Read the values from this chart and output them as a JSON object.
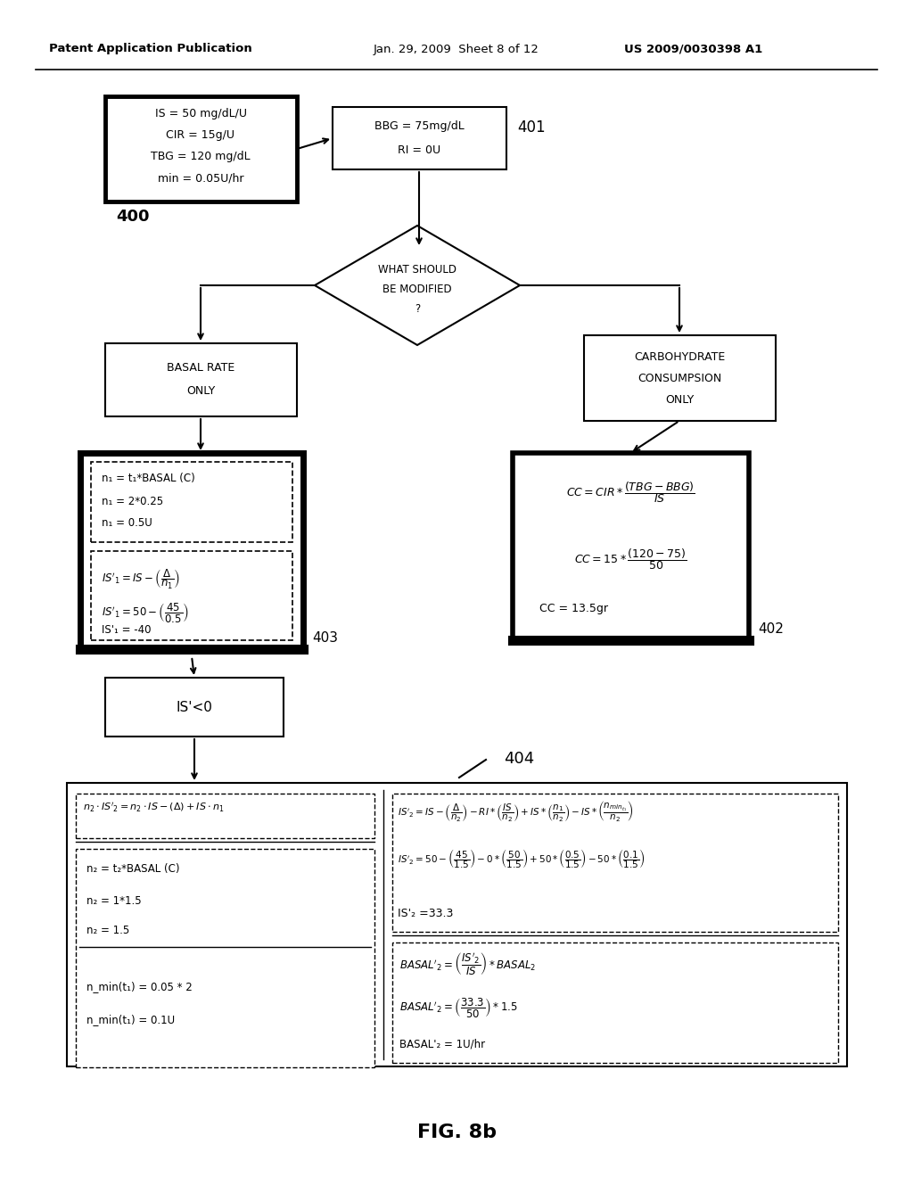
{
  "background_color": "#ffffff",
  "header_left": "Patent Application Publication",
  "header_mid": "Jan. 29, 2009  Sheet 8 of 12",
  "header_right": "US 2009/0030398 A1",
  "footer": "FIG. 8b"
}
